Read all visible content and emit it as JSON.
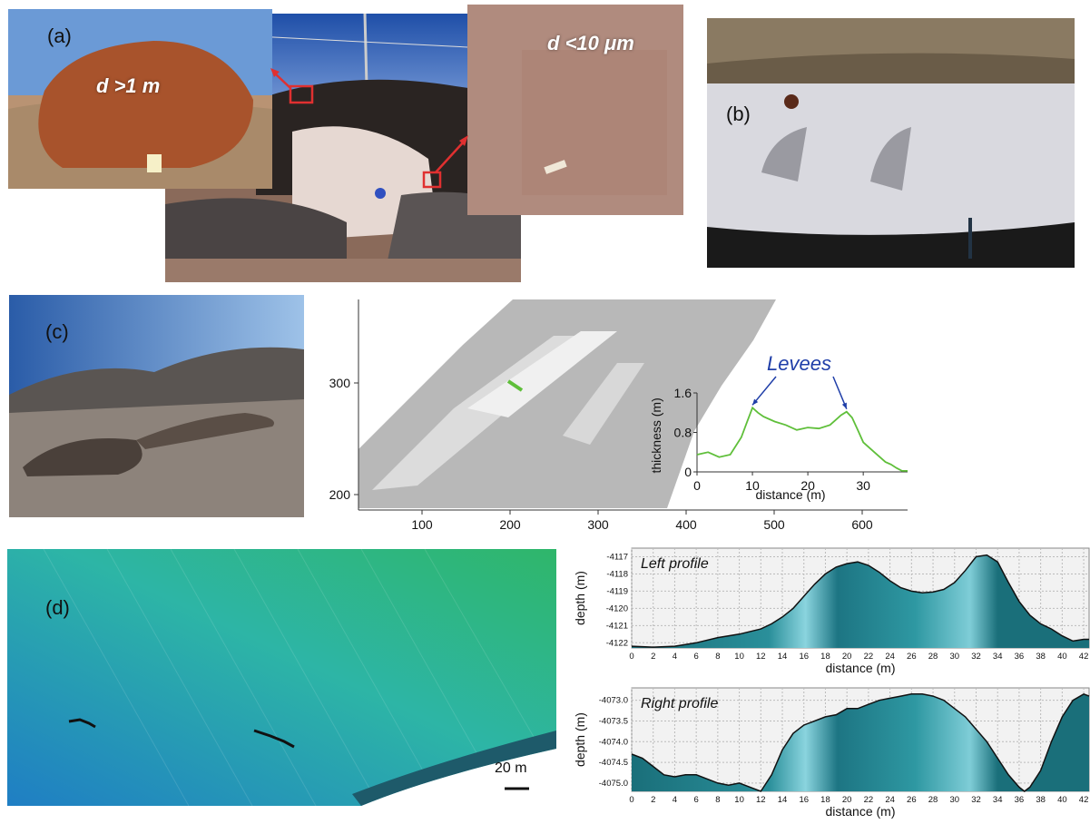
{
  "panels": {
    "a": {
      "label": "(a)",
      "boulder_label_prefix": "d",
      "boulder_label_rest": " >1 m",
      "fines_label_prefix": "d",
      "fines_label_rest": " <10 μm"
    },
    "b": {
      "label": "(b)"
    },
    "c": {
      "label": "(c)"
    },
    "d": {
      "label": "(d)",
      "scale_bar": "20 m"
    }
  },
  "colors": {
    "levee_line": "#5fbf3a",
    "levee_annotation": "#1f3ea8",
    "profile_fill_dark": "#1a6f7a",
    "profile_fill_light": "#8ad4de",
    "highlight_box": "#e03030"
  },
  "chart_data": [
    {
      "type": "line",
      "title": "",
      "annotation": "Levees",
      "xlabel": "distance (m)",
      "ylabel": "thickness (m)",
      "xlim": [
        0,
        38
      ],
      "ylim": [
        0,
        1.6
      ],
      "x_ticks": [
        "0",
        "10",
        "20",
        "30"
      ],
      "y_ticks": [
        "0",
        "0.8",
        "1.6"
      ],
      "x": [
        0,
        2,
        4,
        6,
        8,
        9,
        10,
        11,
        12,
        14,
        16,
        18,
        20,
        22,
        24,
        25,
        26,
        27,
        28,
        29,
        30,
        32,
        34,
        35,
        36,
        37,
        38
      ],
      "y": [
        0.35,
        0.4,
        0.3,
        0.35,
        0.7,
        1.0,
        1.3,
        1.2,
        1.12,
        1.02,
        0.95,
        0.85,
        0.9,
        0.88,
        0.95,
        1.05,
        1.15,
        1.22,
        1.1,
        0.85,
        0.6,
        0.4,
        0.2,
        0.15,
        0.08,
        0.02,
        0.02
      ]
    },
    {
      "type": "area",
      "title": "Left profile",
      "xlabel": "distance (m)",
      "ylabel": "depth (m)",
      "xlim": [
        0,
        42.5
      ],
      "ylim": [
        -4122.3,
        -4116.5
      ],
      "x_ticks": [
        "0",
        "2",
        "4",
        "6",
        "8",
        "10",
        "12",
        "14",
        "16",
        "18",
        "20",
        "22",
        "24",
        "26",
        "28",
        "30",
        "32",
        "34",
        "36",
        "38",
        "40",
        "42"
      ],
      "y_ticks": [
        "-4117",
        "-4118",
        "-4119",
        "-4120",
        "-4121",
        "-4122"
      ],
      "x": [
        0,
        2,
        4,
        6,
        8,
        10,
        12,
        13,
        14,
        15,
        16,
        17,
        18,
        19,
        20,
        21,
        22,
        23,
        24,
        25,
        26,
        27,
        28,
        29,
        30,
        31,
        32,
        33,
        34,
        35,
        36,
        37,
        38,
        39,
        40,
        41,
        42,
        42.5
      ],
      "y": [
        -4122.2,
        -4122.25,
        -4122.2,
        -4122.0,
        -4121.7,
        -4121.5,
        -4121.2,
        -4120.9,
        -4120.5,
        -4120.0,
        -4119.3,
        -4118.6,
        -4118.0,
        -4117.6,
        -4117.4,
        -4117.3,
        -4117.5,
        -4117.9,
        -4118.4,
        -4118.8,
        -4119.0,
        -4119.1,
        -4119.05,
        -4118.9,
        -4118.5,
        -4117.8,
        -4117.0,
        -4116.9,
        -4117.3,
        -4118.5,
        -4119.6,
        -4120.4,
        -4120.9,
        -4121.2,
        -4121.6,
        -4121.9,
        -4121.8,
        -4121.8
      ]
    },
    {
      "type": "area",
      "title": "Right profile",
      "xlabel": "distance (m)",
      "ylabel": "depth (m)",
      "xlim": [
        0,
        42.5
      ],
      "ylim": [
        -4075.2,
        -4072.7
      ],
      "x_ticks": [
        "0",
        "2",
        "4",
        "6",
        "8",
        "10",
        "12",
        "14",
        "16",
        "18",
        "20",
        "22",
        "24",
        "26",
        "28",
        "30",
        "32",
        "34",
        "36",
        "38",
        "40",
        "42"
      ],
      "y_ticks": [
        "-4073.0",
        "-4073.5",
        "-4074.0",
        "-4074.5",
        "-4075.0"
      ],
      "x": [
        0,
        1,
        2,
        3,
        4,
        5,
        6,
        7,
        8,
        9,
        10,
        11,
        12,
        13,
        14,
        15,
        16,
        17,
        18,
        19,
        20,
        21,
        22,
        23,
        24,
        25,
        26,
        27,
        28,
        29,
        30,
        31,
        32,
        33,
        34,
        35,
        36,
        36.5,
        37,
        38,
        39,
        40,
        41,
        42,
        42.5
      ],
      "y": [
        -4074.3,
        -4074.4,
        -4074.6,
        -4074.8,
        -4074.85,
        -4074.8,
        -4074.8,
        -4074.9,
        -4075.0,
        -4075.05,
        -4075.0,
        -4075.1,
        -4075.2,
        -4074.8,
        -4074.2,
        -4073.8,
        -4073.6,
        -4073.5,
        -4073.4,
        -4073.35,
        -4073.2,
        -4073.2,
        -4073.1,
        -4073.0,
        -4072.95,
        -4072.9,
        -4072.85,
        -4072.85,
        -4072.9,
        -4073.0,
        -4073.2,
        -4073.4,
        -4073.7,
        -4074.0,
        -4074.4,
        -4074.8,
        -4075.1,
        -4075.2,
        -4075.1,
        -4074.7,
        -4074.0,
        -4073.4,
        -4073.0,
        -4072.85,
        -4072.9
      ]
    }
  ],
  "dem_axes": {
    "x_ticks": [
      "100",
      "200",
      "300",
      "400",
      "500",
      "600"
    ],
    "y_ticks": [
      "200",
      "300"
    ]
  }
}
